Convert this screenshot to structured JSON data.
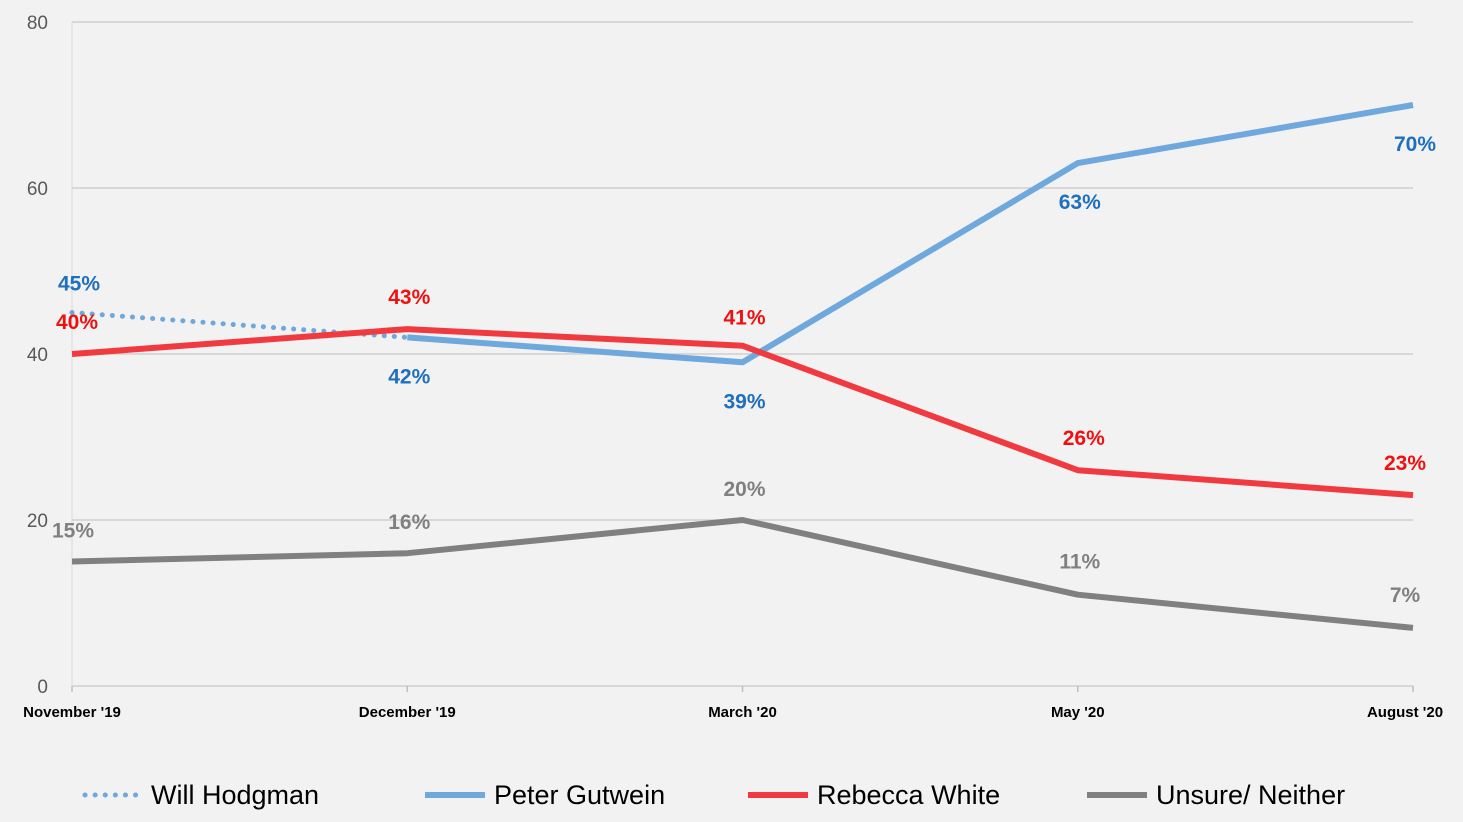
{
  "chart_data": {
    "type": "line",
    "categories": [
      "November '19",
      "December '19",
      "March '20",
      "May '20",
      "August '20"
    ],
    "ylim": [
      0,
      80
    ],
    "yticks": [
      "0",
      "20",
      "40",
      "60",
      "80"
    ],
    "grid": "horizontal",
    "legend_position": "bottom",
    "series": [
      {
        "name": "Will Hodgman",
        "style": "dotted",
        "color": "#6fa8dc",
        "label_color": "#1f6fbf",
        "values": [
          45,
          42,
          null,
          null,
          null
        ],
        "labels": [
          "45%",
          null,
          null,
          null,
          null
        ]
      },
      {
        "name": "Peter Gutwein",
        "style": "solid",
        "color": "#6fa8dc",
        "label_color": "#1f6fbf",
        "values": [
          null,
          42,
          39,
          63,
          70
        ],
        "labels": [
          null,
          "42%",
          "39%",
          "63%",
          "70%"
        ]
      },
      {
        "name": "Rebecca White",
        "style": "solid",
        "color": "#f03a3f",
        "label_color": "#f01010",
        "values": [
          40,
          43,
          41,
          26,
          23
        ],
        "labels": [
          "40%",
          "43%",
          "41%",
          "26%",
          "23%"
        ]
      },
      {
        "name": "Unsure/ Neither",
        "style": "solid",
        "color": "#808080",
        "label_color": "#808080",
        "values": [
          15,
          16,
          20,
          11,
          7
        ],
        "labels": [
          "15%",
          "16%",
          "20%",
          "11%",
          "7%"
        ]
      }
    ]
  }
}
